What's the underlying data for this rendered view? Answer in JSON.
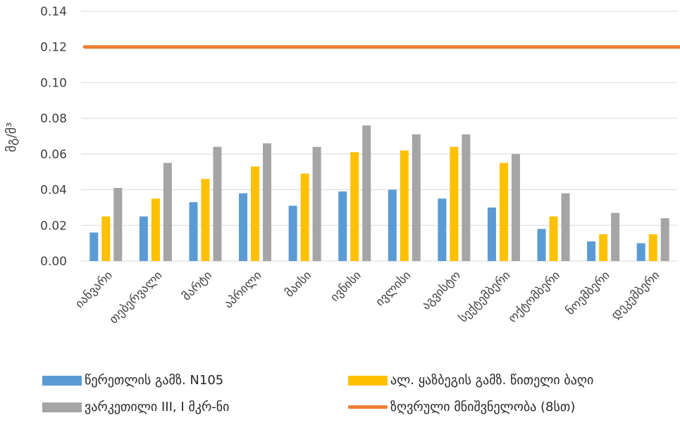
{
  "chart_data": {
    "type": "bar",
    "ylabel": "მგ/მ³",
    "ylim": [
      0,
      0.14
    ],
    "yticks": [
      "0.00",
      "0.02",
      "0.04",
      "0.06",
      "0.08",
      "0.10",
      "0.12",
      "0.14"
    ],
    "grid": true,
    "legend_position": "bottom",
    "categories": [
      "იანვარი",
      "თებერვალი",
      "მარტი",
      "აპრილი",
      "მაისი",
      "ივნისი",
      "ივლისი",
      "აგვისტო",
      "სექტემბერი",
      "ოქტომბერი",
      "ნოემბერი",
      "დეკემბერი"
    ],
    "series": [
      {
        "name": "წერეთლის გამზ. N105",
        "type": "bar",
        "color": "#5B9BD5",
        "values": [
          0.016,
          0.025,
          0.033,
          0.038,
          0.031,
          0.039,
          0.04,
          0.035,
          0.03,
          0.018,
          0.011,
          0.01
        ]
      },
      {
        "name": "ალ. ყაზბეგის გამზ. წითელი ბაღი",
        "type": "bar",
        "color": "#FFC000",
        "values": [
          0.025,
          0.035,
          0.046,
          0.053,
          0.049,
          0.061,
          0.062,
          0.064,
          0.055,
          0.025,
          0.015,
          0.015
        ]
      },
      {
        "name": "ვარკეთილი III, I  მკრ-ნი",
        "type": "bar",
        "color": "#A5A5A5",
        "values": [
          0.041,
          0.055,
          0.064,
          0.066,
          0.064,
          0.076,
          0.071,
          0.071,
          0.06,
          0.038,
          0.027,
          0.024
        ]
      },
      {
        "name": "ზღვრული მნიშვნელობა (8სთ)",
        "type": "line",
        "color": "#ED7D31",
        "values": [
          0.12,
          0.12,
          0.12,
          0.12,
          0.12,
          0.12,
          0.12,
          0.12,
          0.12,
          0.12,
          0.12,
          0.12
        ]
      }
    ]
  }
}
